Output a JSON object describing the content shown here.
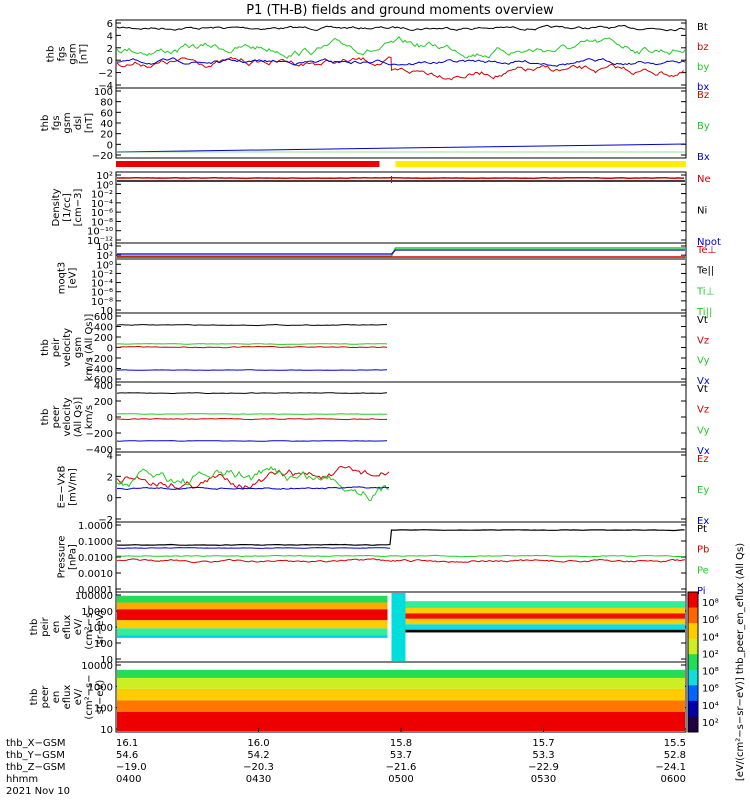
{
  "title": "P1 (TH-B) fields and ground moments overview",
  "colors": {
    "black": "#000000",
    "red": "#d40000",
    "green": "#22cc22",
    "blue": "#0000cc",
    "yellow": "#ffee00"
  },
  "panels": [
    {
      "id": "fgs",
      "ylabel": [
        "thb",
        "fgs",
        "gsm",
        "[nT]"
      ],
      "yticks": [
        "6",
        "4",
        "2",
        "0",
        "−2",
        "−4"
      ],
      "legend": [
        {
          "label": "Bt",
          "color": "black"
        },
        {
          "label": "bz",
          "color": "red"
        },
        {
          "label": "by",
          "color": "green"
        },
        {
          "label": "bx",
          "color": "blue"
        }
      ]
    },
    {
      "id": "fgs_dsl",
      "ylabel": [
        "thb",
        "fgs",
        "gsm",
        "dsl",
        "[nT]"
      ],
      "yticks": [
        "100",
        "80",
        "60",
        "40",
        "20",
        "0",
        "−20"
      ],
      "legend": [
        {
          "label": "Bz",
          "color": "red"
        },
        {
          "label": "By",
          "color": "green"
        },
        {
          "label": "Bx",
          "color": "blue"
        }
      ]
    },
    {
      "id": "density",
      "ylabel": [
        "Density",
        "[1/cc]",
        "[cm−3]"
      ],
      "yticks": [
        "10²",
        "10⁰",
        "10⁻²",
        "10⁻⁴",
        "10⁻⁶",
        "10⁻⁸",
        "10⁻¹⁰",
        "10⁻¹²"
      ],
      "legend": [
        {
          "label": "Ne",
          "color": "red"
        },
        {
          "label": "Ni",
          "color": "black"
        },
        {
          "label": "Npot",
          "color": "blue"
        }
      ]
    },
    {
      "id": "temp",
      "ylabel": [
        "moqt3",
        "[eV]"
      ],
      "yticks": [
        "10⁴",
        "10²",
        "10⁰",
        "10⁻²",
        "10⁻⁴",
        "10⁻⁶",
        "10⁻⁸",
        "10"
      ],
      "legend": [
        {
          "label": "Te⊥",
          "color": "red"
        },
        {
          "label": "Te||",
          "color": "black"
        },
        {
          "label": "Ti⊥",
          "color": "green"
        },
        {
          "label": "Ti||",
          "color": "green"
        }
      ]
    },
    {
      "id": "peir_vel",
      "ylabel": [
        "thb",
        "peir",
        "velocity",
        "gsm",
        "km/s (All Qs)]"
      ],
      "yticks": [
        "600",
        "400",
        "200",
        "0",
        "−200",
        "−400",
        "−600"
      ],
      "legend": [
        {
          "label": "Vt",
          "color": "black"
        },
        {
          "label": "Vz",
          "color": "red"
        },
        {
          "label": "Vy",
          "color": "green"
        },
        {
          "label": "Vx",
          "color": "blue"
        }
      ]
    },
    {
      "id": "peer_vel",
      "ylabel": [
        "thb",
        "peer",
        "velocity",
        "(All Qs)]",
        "km/s"
      ],
      "yticks": [
        "400",
        "200",
        "0",
        "−200",
        "−400"
      ],
      "legend": [
        {
          "label": "Vt",
          "color": "black"
        },
        {
          "label": "Vz",
          "color": "red"
        },
        {
          "label": "Vy",
          "color": "green"
        },
        {
          "label": "Vx",
          "color": "blue"
        }
      ]
    },
    {
      "id": "efield",
      "ylabel": [
        "E=−VxB",
        "[mV/m]"
      ],
      "yticks": [
        "4",
        "2",
        "0",
        "−2"
      ],
      "legend": [
        {
          "label": "Ez",
          "color": "red"
        },
        {
          "label": "Ey",
          "color": "green"
        },
        {
          "label": "Ex",
          "color": "blue"
        }
      ]
    },
    {
      "id": "pressure",
      "ylabel": [
        "Pressure",
        "[nPa]"
      ],
      "yticks": [
        "1.0000",
        "0.1000",
        "0.0100",
        "0.0010",
        "0.0001"
      ],
      "legend": [
        {
          "label": "Pt",
          "color": "black"
        },
        {
          "label": "Pb",
          "color": "red"
        },
        {
          "label": "Pe",
          "color": "green"
        },
        {
          "label": "Pi",
          "color": "blue"
        }
      ]
    },
    {
      "id": "peir_en",
      "ylabel": [
        "thb",
        "peir",
        "en",
        "eflux",
        "eV/",
        "(cm²−s−",
        "sr−eV)"
      ],
      "yticks": [
        "100000",
        "10000",
        "1000",
        "100",
        "10"
      ],
      "legend": []
    },
    {
      "id": "peer_en",
      "ylabel": [
        "thb",
        "peer",
        "en",
        "eflux",
        "eV/",
        "(cm²−s−",
        "sr−eV)"
      ],
      "yticks": [
        "10000",
        "1000",
        "100",
        "10"
      ],
      "legend": []
    }
  ],
  "colorbar": {
    "ticks": [
      "10⁸",
      "10⁶",
      "10⁴",
      "10²",
      "10⁸",
      "10⁶",
      "10⁴",
      "10²"
    ],
    "label": "[eV/(cm²−s−sr−eV)]  thb_peer_en_eflux (All Qs)"
  },
  "xaxis": {
    "row_labels": [
      "thb_X−GSM",
      "thb_Y−GSM",
      "thb_Z−GSM",
      "hhmm",
      "2021 Nov 10"
    ],
    "columns": [
      {
        "x_gsm": "16.1",
        "y_gsm": "54.6",
        "z_gsm": "−19.0",
        "hhmm": "0400"
      },
      {
        "x_gsm": "16.0",
        "y_gsm": "54.2",
        "z_gsm": "−20.3",
        "hhmm": "0430"
      },
      {
        "x_gsm": "15.8",
        "y_gsm": "53.7",
        "z_gsm": "−21.6",
        "hhmm": "0500"
      },
      {
        "x_gsm": "15.7",
        "y_gsm": "53.3",
        "z_gsm": "−22.9",
        "hhmm": "0530"
      },
      {
        "x_gsm": "15.5",
        "y_gsm": "52.8",
        "z_gsm": "−24.1",
        "hhmm": "0600"
      }
    ]
  },
  "chart_data": {
    "type": "line",
    "title": "P1 (TH-B) fields and ground moments overview",
    "x_range": [
      "04:00",
      "06:00"
    ],
    "x_ticks": [
      "0400",
      "0430",
      "0500",
      "0530",
      "0600"
    ],
    "mode_change_time": "04:58",
    "series_levels": [
      {
        "panel": "fgs",
        "name": "Bt",
        "before": 5.0,
        "after": 5.0
      },
      {
        "panel": "fgs",
        "name": "bz",
        "before": 0.0,
        "after": -1.5
      },
      {
        "panel": "fgs",
        "name": "by",
        "before": 3.0,
        "after": 1.5
      },
      {
        "panel": "fgs",
        "name": "bx",
        "before": -1.5,
        "after": 0.0
      },
      {
        "panel": "peir_vel",
        "name": "Vt",
        "before": 400,
        "after": null
      },
      {
        "panel": "peir_vel",
        "name": "Vz",
        "before": 0,
        "after": null
      },
      {
        "panel": "peir_vel",
        "name": "Vy",
        "before": 30,
        "after": null
      },
      {
        "panel": "peir_vel",
        "name": "Vx",
        "before": -400,
        "after": null
      },
      {
        "panel": "peer_vel",
        "name": "Vt",
        "before": 300,
        "after": null
      },
      {
        "panel": "peer_vel",
        "name": "Vz",
        "before": 0,
        "after": null
      },
      {
        "panel": "peer_vel",
        "name": "Vy",
        "before": 30,
        "after": null
      },
      {
        "panel": "peer_vel",
        "name": "Vx",
        "before": -270,
        "after": null
      },
      {
        "panel": "pressure",
        "name": "Pt",
        "before": 0.05,
        "after": 0.5
      },
      {
        "panel": "pressure",
        "name": "Pb",
        "before": 0.008,
        "after": 0.01
      },
      {
        "panel": "pressure",
        "name": "Pe",
        "before": 0.02,
        "after": 0.02
      }
    ]
  }
}
